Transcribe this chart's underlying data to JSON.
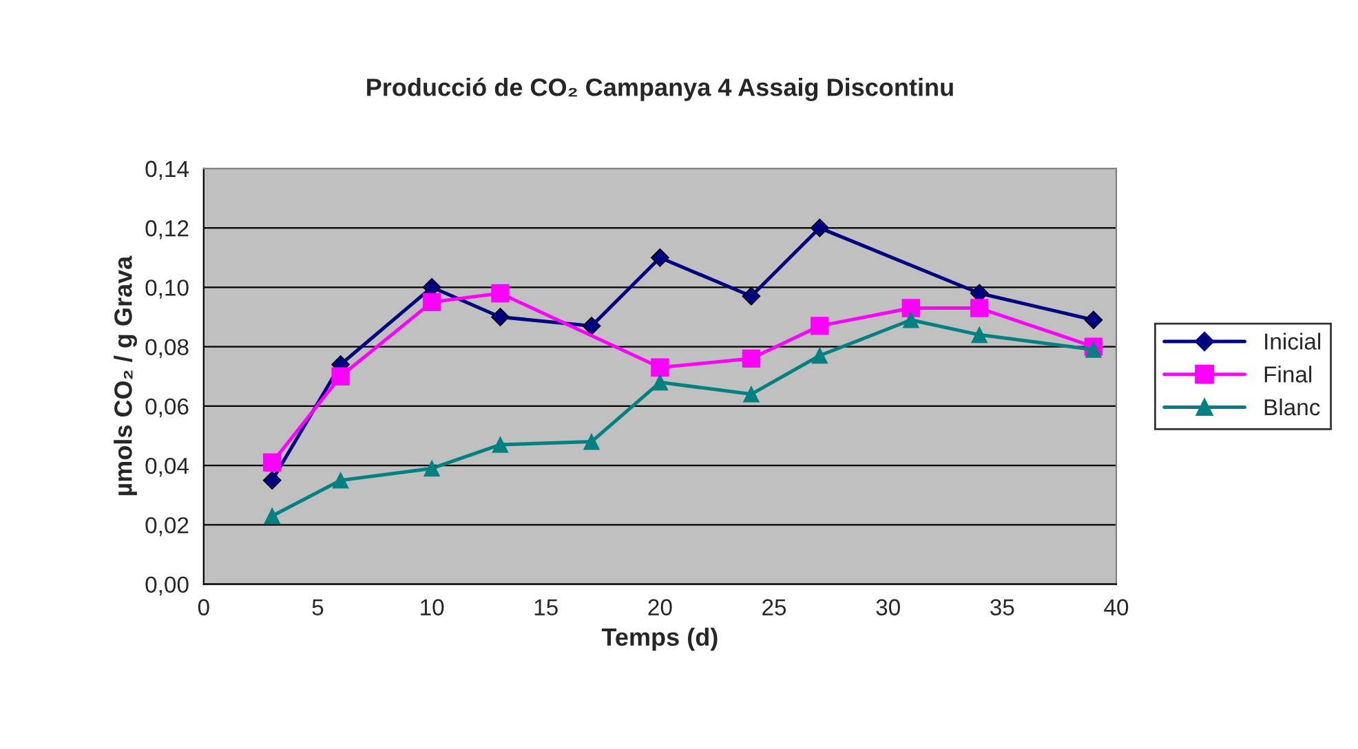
{
  "chart_data": {
    "type": "line",
    "title": "Producció de CO₂ Campanya 4 Assaig Discontinu",
    "xlabel": "Temps (d)",
    "ylabel": "µmols CO₂ / g Grava",
    "series": [
      {
        "name": "Inicial",
        "color": "#000080",
        "marker": "diamond",
        "x": [
          3,
          6,
          10,
          13,
          17,
          20,
          24,
          27,
          34,
          39
        ],
        "values": [
          0.035,
          0.074,
          0.1,
          0.09,
          0.087,
          0.11,
          0.097,
          0.12,
          0.098,
          0.089
        ]
      },
      {
        "name": "Final",
        "color": "#ff00ff",
        "marker": "square",
        "x": [
          3,
          6,
          10,
          13,
          20,
          24,
          27,
          31,
          34,
          39
        ],
        "values": [
          0.041,
          0.07,
          0.095,
          0.098,
          0.073,
          0.076,
          0.087,
          0.093,
          0.093,
          0.08
        ]
      },
      {
        "name": "Blanc",
        "color": "#008080",
        "marker": "triangle",
        "x": [
          3,
          6,
          10,
          13,
          17,
          20,
          24,
          27,
          31,
          34,
          39
        ],
        "values": [
          0.023,
          0.035,
          0.039,
          0.047,
          0.048,
          0.068,
          0.064,
          0.077,
          0.089,
          0.084,
          0.079
        ]
      }
    ],
    "xlim": [
      0,
      40
    ],
    "xticks": [
      0,
      5,
      10,
      15,
      20,
      25,
      30,
      35,
      40
    ],
    "ylim": [
      0,
      0.14
    ],
    "yticks": [
      {
        "value": 0,
        "label": "0,00"
      },
      {
        "value": 0.02,
        "label": "0,02"
      },
      {
        "value": 0.04,
        "label": "0,04"
      },
      {
        "value": 0.06,
        "label": "0,06"
      },
      {
        "value": 0.08,
        "label": "0,08"
      },
      {
        "value": 0.1,
        "label": "0,10"
      },
      {
        "value": 0.12,
        "label": "0,12"
      },
      {
        "value": 0.14,
        "label": "0,14"
      }
    ],
    "grid": "y",
    "legend": "right",
    "line_style": "solid"
  }
}
